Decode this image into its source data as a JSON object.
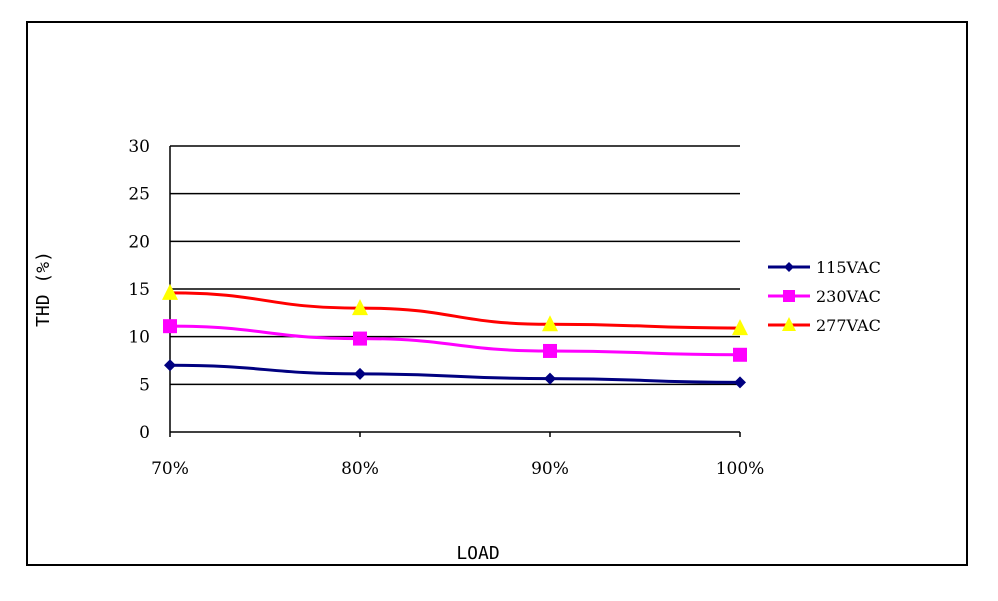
{
  "chart_data": {
    "type": "line",
    "title": "",
    "xlabel": "LOAD",
    "ylabel": "THD (%)",
    "categories": [
      "70%",
      "80%",
      "90%",
      "100%"
    ],
    "ylim": [
      0,
      30
    ],
    "yticks": [
      "0",
      "5",
      "10",
      "15",
      "20",
      "25",
      "30"
    ],
    "grid": true,
    "legend_position": "right",
    "series": [
      {
        "name": "115VAC",
        "values": [
          7.0,
          6.1,
          5.6,
          5.2
        ],
        "color": "#000080",
        "marker": "diamond"
      },
      {
        "name": "230VAC",
        "values": [
          11.1,
          9.8,
          8.5,
          8.1
        ],
        "color": "#ff00ff",
        "marker": "square"
      },
      {
        "name": "277VAC",
        "values": [
          14.6,
          13.0,
          11.3,
          10.9
        ],
        "color": "#ff0000",
        "marker": "triangle",
        "marker_color": "#ffff00"
      }
    ]
  }
}
